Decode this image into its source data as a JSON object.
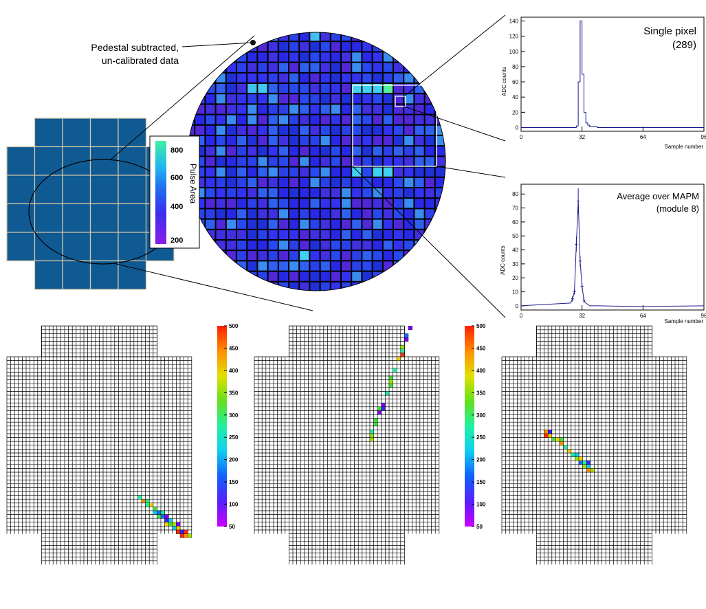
{
  "annotation": {
    "line1": "Pedestal subtracted,",
    "line2": "un-calibrated data"
  },
  "zoom_colorbar": {
    "title": "Pulse Area",
    "ticks": [
      "800",
      "600",
      "400",
      "200"
    ]
  },
  "bottom_colorbar": {
    "ticks": [
      "500",
      "450",
      "400",
      "350",
      "300",
      "250",
      "200",
      "150",
      "100",
      "50"
    ]
  },
  "chart_data": [
    {
      "type": "line",
      "title": "Single pixel",
      "subtitle": "(289)",
      "xlabel": "Sample number",
      "ylabel": "ADC counts",
      "xlim": [
        0,
        96
      ],
      "ylim": [
        -5,
        145
      ],
      "xticks": [
        "0",
        "32",
        "64",
        "96"
      ],
      "yticks": [
        "0",
        "20",
        "40",
        "60",
        "80",
        "100",
        "120",
        "140"
      ],
      "x": [
        0,
        28,
        29,
        30,
        31,
        32,
        33,
        34,
        35,
        36,
        40,
        96
      ],
      "y": [
        0,
        0,
        2,
        60,
        140,
        70,
        20,
        6,
        3,
        1,
        0,
        0
      ]
    },
    {
      "type": "line",
      "title": "Average over MAPM",
      "subtitle": "(module 8)",
      "xlabel": "Sample number",
      "ylabel": "ADC counts",
      "xlim": [
        0,
        96
      ],
      "ylim": [
        -3,
        87
      ],
      "xticks": [
        "0",
        "32",
        "64",
        "96"
      ],
      "yticks": [
        "0",
        "10",
        "20",
        "30",
        "40",
        "50",
        "60",
        "70",
        "80"
      ],
      "x": [
        0,
        26,
        27,
        28,
        29,
        30,
        31,
        32,
        33,
        34,
        35,
        36,
        40,
        64,
        96
      ],
      "y": [
        0,
        2,
        5,
        10,
        44,
        75,
        32,
        14,
        4,
        2,
        1,
        0,
        0,
        -0.5,
        0
      ]
    }
  ]
}
